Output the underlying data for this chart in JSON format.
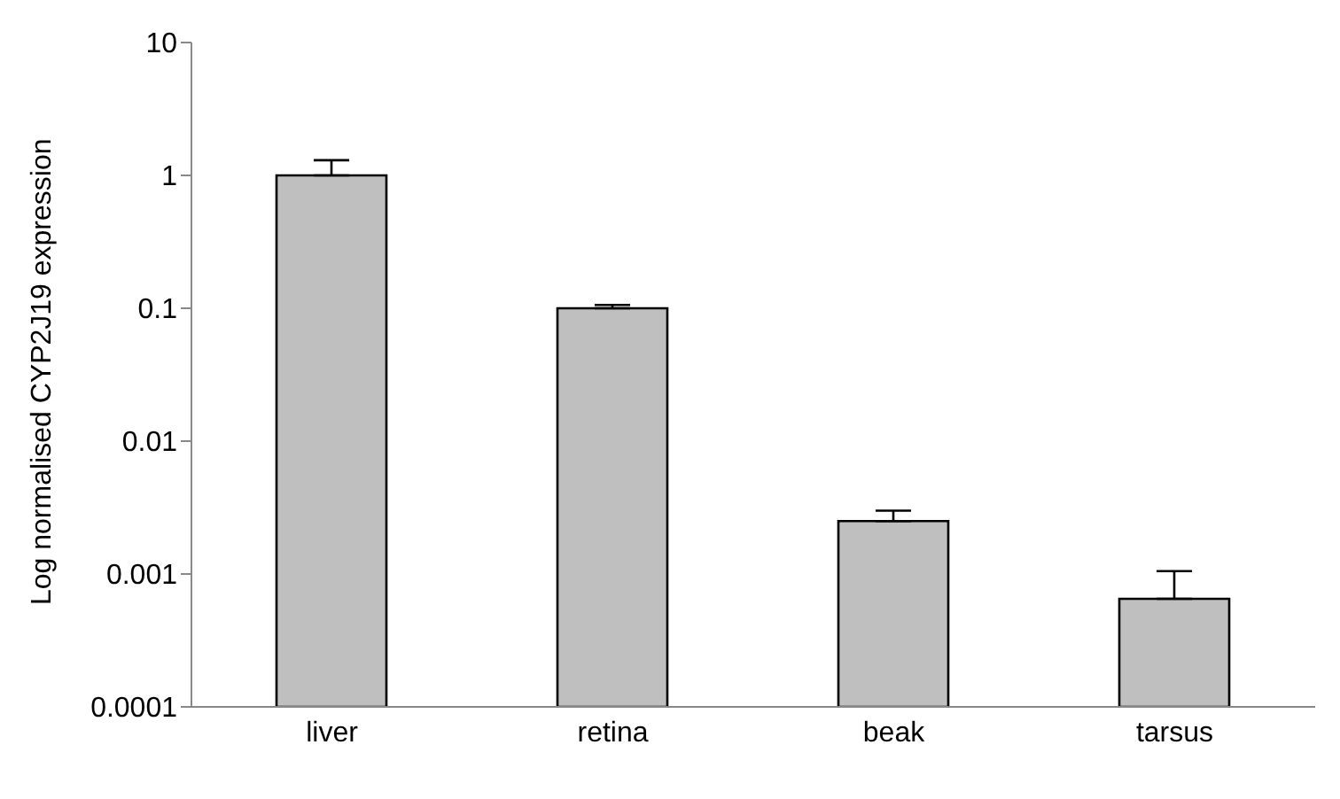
{
  "chart_data": {
    "type": "bar",
    "ylabel": "Log normalised CYP2J19 expression",
    "categories": [
      "liver",
      "retina",
      "beak",
      "tarsus"
    ],
    "values": [
      1,
      0.1,
      0.0025,
      0.00065
    ],
    "errors": [
      [
        1,
        1.3
      ],
      [
        0.1,
        0.106
      ],
      [
        0.0025,
        0.003
      ],
      [
        0.00065,
        0.00105
      ]
    ],
    "color": "#bfbfbf",
    "log": true,
    "ylim": [
      0.0001,
      10
    ],
    "yticks": [
      0.0001,
      0.001,
      0.01,
      0.1,
      1,
      10
    ],
    "grid": false
  }
}
